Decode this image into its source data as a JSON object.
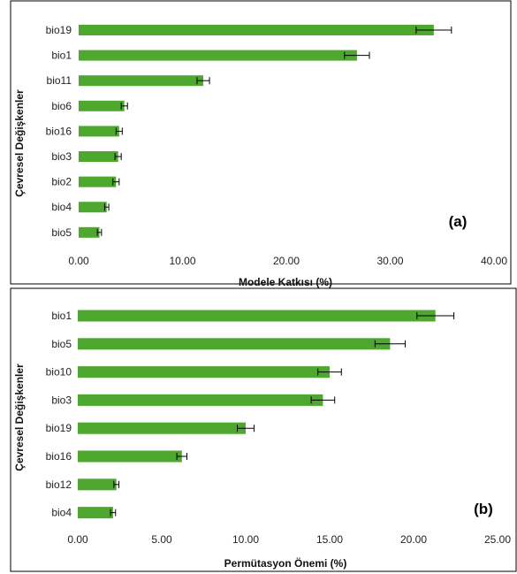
{
  "colors": {
    "bar": "#4ea72e",
    "error": "#000000",
    "frame": "#000000"
  },
  "chart_data": [
    {
      "type": "bar",
      "orientation": "horizontal",
      "panel_label": "(a)",
      "xlabel": "Modele Katkısı (%)",
      "ylabel": "Çevresel Değişkenler",
      "xlim": [
        0,
        40
      ],
      "xticks": [
        "0.00",
        "10.00",
        "20.00",
        "30.00",
        "40.00"
      ],
      "grid": false,
      "error_bars": true,
      "categories": [
        "bio19",
        "bio1",
        "bio11",
        "bio6",
        "bio16",
        "bio3",
        "bio2",
        "bio4",
        "bio5"
      ],
      "values": [
        34.2,
        26.8,
        12.0,
        4.4,
        3.9,
        3.8,
        3.6,
        2.7,
        2.0
      ],
      "errors": [
        1.7,
        1.2,
        0.6,
        0.3,
        0.3,
        0.3,
        0.3,
        0.2,
        0.2
      ]
    },
    {
      "type": "bar",
      "orientation": "horizontal",
      "panel_label": "(b)",
      "xlabel": "Permütasyon Önemi (%)",
      "ylabel": "Çevresel Değişkenler",
      "xlim": [
        0,
        25
      ],
      "xticks": [
        "0.00",
        "5.00",
        "10.00",
        "15.00",
        "20.00",
        "25.00"
      ],
      "grid": false,
      "error_bars": true,
      "categories": [
        "bio1",
        "bio5",
        "bio10",
        "bio3",
        "bio19",
        "bio16",
        "bio12",
        "bio4"
      ],
      "values": [
        21.3,
        18.6,
        15.0,
        14.6,
        10.0,
        6.2,
        2.3,
        2.1
      ],
      "errors": [
        1.1,
        0.9,
        0.7,
        0.7,
        0.5,
        0.3,
        0.15,
        0.15
      ]
    }
  ]
}
